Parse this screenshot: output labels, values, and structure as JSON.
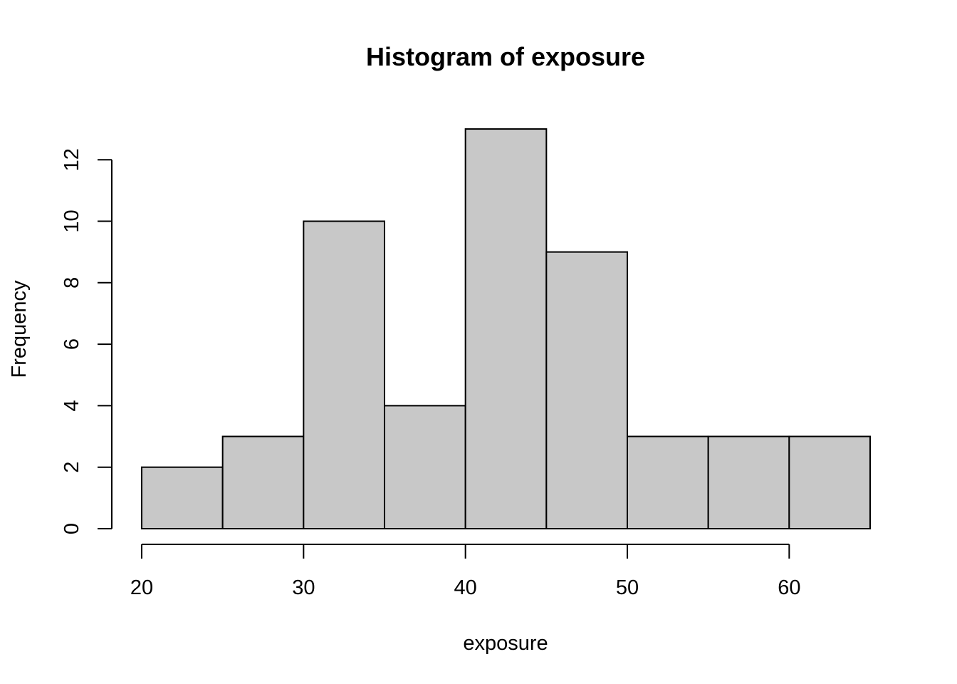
{
  "chart_data": {
    "type": "bar",
    "title": "Histogram of exposure",
    "xlabel": "exposure",
    "ylabel": "Frequency",
    "bins": [
      {
        "start": 20,
        "end": 25,
        "count": 2
      },
      {
        "start": 25,
        "end": 30,
        "count": 3
      },
      {
        "start": 30,
        "end": 35,
        "count": 10
      },
      {
        "start": 35,
        "end": 40,
        "count": 4
      },
      {
        "start": 40,
        "end": 45,
        "count": 13
      },
      {
        "start": 45,
        "end": 50,
        "count": 9
      },
      {
        "start": 50,
        "end": 55,
        "count": 3
      },
      {
        "start": 55,
        "end": 60,
        "count": 3
      },
      {
        "start": 60,
        "end": 65,
        "count": 3
      }
    ],
    "xlim": [
      20,
      65
    ],
    "ylim": [
      0,
      13
    ],
    "x_ticks": [
      20,
      30,
      40,
      50,
      60
    ],
    "y_ticks": [
      0,
      2,
      4,
      6,
      8,
      10,
      12
    ],
    "bar_color": "#c8c8c8",
    "grid": false,
    "legend": "none"
  }
}
